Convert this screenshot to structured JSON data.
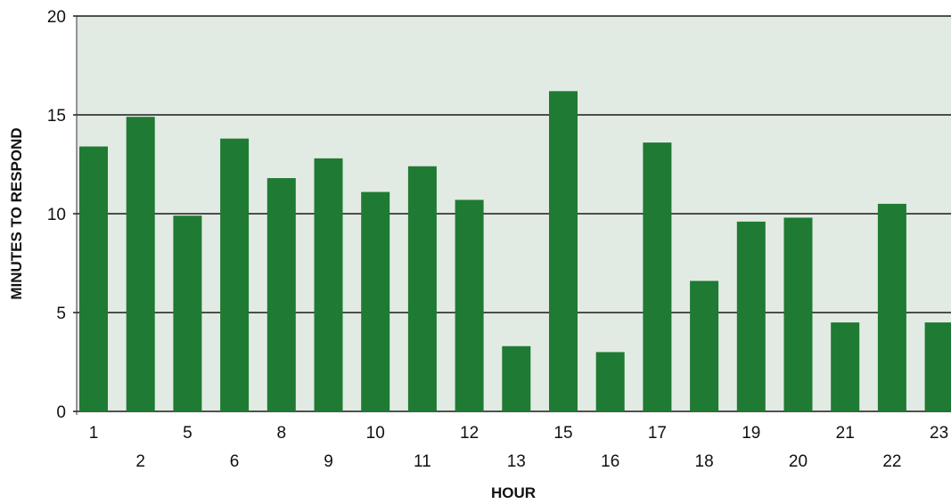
{
  "chart_data": {
    "type": "bar",
    "title": "",
    "xlabel": "HOUR",
    "ylabel": "MINUTES TO RESPOND",
    "ylim": [
      0,
      20
    ],
    "yticks": [
      "0",
      "5",
      "10",
      "15",
      "20"
    ],
    "categories": [
      "1",
      "2",
      "5",
      "6",
      "8",
      "9",
      "10",
      "11",
      "12",
      "13",
      "15",
      "16",
      "17",
      "18",
      "19",
      "20",
      "21",
      "22",
      "23"
    ],
    "values": [
      13.4,
      14.9,
      9.9,
      13.8,
      11.8,
      12.8,
      11.1,
      12.4,
      10.7,
      3.3,
      16.2,
      3.0,
      13.6,
      6.6,
      9.6,
      9.8,
      4.5,
      10.5,
      4.5
    ],
    "grid": true,
    "legend": "none",
    "colors": {
      "bar": "#1f7a33",
      "plot_background": "#e2ebe3",
      "gridline": "#1a1a1a"
    }
  }
}
